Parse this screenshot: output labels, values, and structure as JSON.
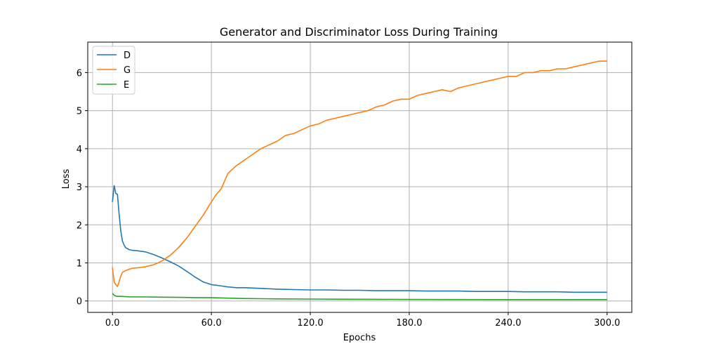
{
  "chart_data": {
    "type": "line",
    "title": "Generator and Discriminator Loss During Training",
    "xlabel": "Epochs",
    "ylabel": "Loss",
    "xlim": [
      -15,
      315
    ],
    "ylim": [
      -0.3,
      6.8
    ],
    "xticks": [
      0,
      60,
      120,
      180,
      240,
      300
    ],
    "xtick_labels": [
      "0.0",
      "60.0",
      "120.0",
      "180.0",
      "240.0",
      "300.0"
    ],
    "yticks": [
      0,
      1,
      2,
      3,
      4,
      5,
      6
    ],
    "ytick_labels": [
      "0",
      "1",
      "2",
      "3",
      "4",
      "5",
      "6"
    ],
    "grid": true,
    "legend_position": "top-left",
    "series": [
      {
        "name": "D",
        "color": "#1f77b4",
        "x": [
          0,
          1,
          2,
          3,
          4,
          5,
          6,
          7,
          8,
          10,
          12,
          15,
          20,
          25,
          30,
          35,
          40,
          45,
          50,
          55,
          60,
          65,
          70,
          75,
          80,
          90,
          100,
          110,
          120,
          130,
          140,
          150,
          160,
          170,
          180,
          190,
          200,
          210,
          220,
          230,
          240,
          250,
          260,
          270,
          280,
          290,
          300
        ],
        "values": [
          2.6,
          3.03,
          2.83,
          2.8,
          2.3,
          1.85,
          1.58,
          1.47,
          1.4,
          1.35,
          1.33,
          1.32,
          1.29,
          1.22,
          1.13,
          1.03,
          0.92,
          0.78,
          0.63,
          0.5,
          0.43,
          0.4,
          0.37,
          0.35,
          0.35,
          0.33,
          0.31,
          0.3,
          0.29,
          0.29,
          0.28,
          0.28,
          0.27,
          0.27,
          0.27,
          0.26,
          0.26,
          0.26,
          0.25,
          0.25,
          0.25,
          0.24,
          0.24,
          0.24,
          0.23,
          0.23,
          0.23
        ]
      },
      {
        "name": "G",
        "color": "#ff7f0e",
        "x": [
          0,
          1,
          2,
          3,
          4,
          5,
          6,
          8,
          10,
          12,
          15,
          20,
          25,
          30,
          35,
          40,
          45,
          50,
          55,
          60,
          63,
          66,
          70,
          75,
          80,
          85,
          90,
          95,
          100,
          105,
          110,
          115,
          120,
          125,
          130,
          135,
          140,
          145,
          150,
          155,
          160,
          165,
          170,
          175,
          180,
          185,
          190,
          195,
          200,
          205,
          210,
          215,
          220,
          225,
          230,
          235,
          240,
          245,
          250,
          255,
          260,
          265,
          270,
          275,
          280,
          285,
          290,
          295,
          300
        ],
        "values": [
          0.88,
          0.5,
          0.43,
          0.38,
          0.5,
          0.65,
          0.75,
          0.8,
          0.83,
          0.86,
          0.87,
          0.9,
          0.95,
          1.05,
          1.2,
          1.4,
          1.65,
          1.95,
          2.25,
          2.6,
          2.8,
          2.95,
          3.35,
          3.55,
          3.7,
          3.85,
          4.0,
          4.1,
          4.2,
          4.35,
          4.4,
          4.5,
          4.6,
          4.65,
          4.75,
          4.8,
          4.85,
          4.9,
          4.95,
          5.0,
          5.1,
          5.15,
          5.25,
          5.3,
          5.3,
          5.4,
          5.45,
          5.5,
          5.55,
          5.5,
          5.6,
          5.65,
          5.7,
          5.75,
          5.8,
          5.85,
          5.9,
          5.9,
          6.0,
          6.0,
          6.05,
          6.05,
          6.1,
          6.1,
          6.15,
          6.2,
          6.25,
          6.3,
          6.3
        ]
      },
      {
        "name": "E",
        "color": "#2ca02c",
        "x": [
          0,
          1,
          2,
          3,
          5,
          10,
          20,
          30,
          40,
          50,
          60,
          70,
          80,
          90,
          100,
          120,
          150,
          180,
          210,
          240,
          270,
          300
        ],
        "values": [
          0.2,
          0.15,
          0.13,
          0.12,
          0.12,
          0.11,
          0.105,
          0.1,
          0.095,
          0.09,
          0.085,
          0.075,
          0.065,
          0.06,
          0.055,
          0.05,
          0.045,
          0.04,
          0.038,
          0.035,
          0.035,
          0.035
        ]
      }
    ]
  }
}
